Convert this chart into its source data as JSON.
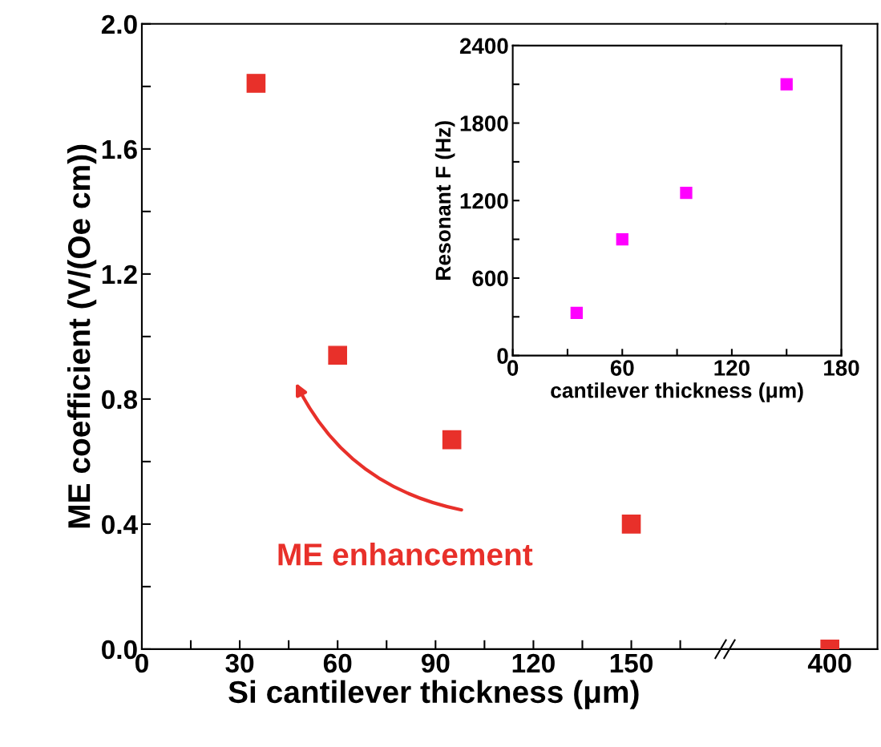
{
  "chart_data": [
    {
      "type": "scatter",
      "ylabel": "ME coefficient (V/(Oe cm))",
      "xlabel": "Si cantilever thickness (μm)",
      "marker": "square",
      "series": [
        {
          "color": "#e8302a",
          "x": [
            35,
            60,
            95,
            150
          ],
          "values": [
            1.81,
            0.94,
            0.67,
            0.4
          ]
        }
      ],
      "xlim": [
        0,
        179
      ],
      "xticks": [
        0,
        {
          "value": 15,
          "label": null
        },
        30,
        {
          "value": 45,
          "label": null
        },
        60,
        {
          "value": 75,
          "label": null
        },
        90,
        {
          "value": 105,
          "label": null
        },
        120,
        {
          "value": 135,
          "label": null
        },
        150,
        {
          "value": 165,
          "label": null
        }
      ],
      "ylim": [
        0,
        2.0
      ],
      "yticks": [
        {
          "value": 0,
          "label": "0.0"
        },
        {
          "value": 0.2,
          "label": null
        },
        0.4,
        {
          "value": 0.6,
          "label": null
        },
        0.8,
        {
          "value": 1.0,
          "label": null
        },
        1.2,
        {
          "value": 1.4,
          "label": null
        },
        1.6,
        {
          "value": 1.8,
          "label": null
        },
        {
          "value": 2.0,
          "label": "2.0"
        }
      ],
      "annotations": [
        "ME enhancement"
      ]
    },
    {
      "type": "scatter",
      "marker": "square",
      "tick_labels": "x",
      "categories": [
        "400"
      ],
      "series": [
        {
          "color": "#e8302a",
          "values": [
            0.0
          ]
        }
      ],
      "ylim": [
        0,
        2.0
      ]
    },
    {
      "type": "scatter",
      "ylabel": "Resonant F (Hz)",
      "xlabel": "cantilever thickness (μm)",
      "marker": "square",
      "series": [
        {
          "color": "#ff00ff",
          "x": [
            35,
            60,
            95,
            150
          ],
          "values": [
            330,
            900,
            1260,
            2100
          ]
        }
      ],
      "xlim": [
        0,
        180
      ],
      "xticks": [
        0,
        {
          "value": 30,
          "label": null
        },
        60,
        {
          "value": 90,
          "label": null
        },
        120,
        {
          "value": 150,
          "label": null
        },
        180
      ],
      "ylim": [
        0,
        2400
      ],
      "yticks": [
        0,
        {
          "value": 300,
          "label": null
        },
        600,
        {
          "value": 900,
          "label": null
        },
        1200,
        {
          "value": 1500,
          "label": null
        },
        1800,
        {
          "value": 2100,
          "label": null
        },
        2400
      ]
    }
  ]
}
